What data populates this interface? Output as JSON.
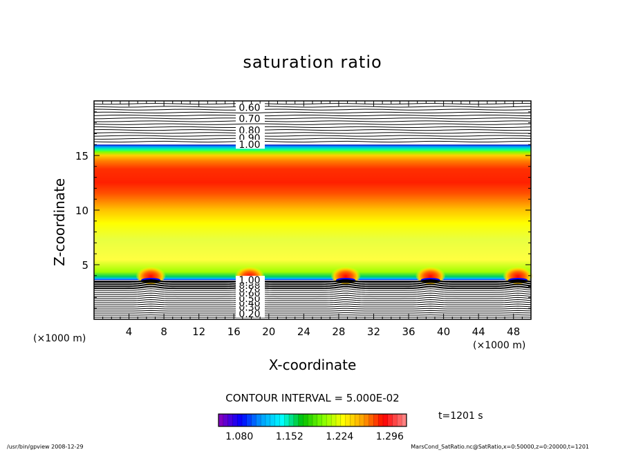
{
  "chart_data": {
    "type": "heatmap",
    "title": "saturation ratio",
    "xlabel": "X-coordinate",
    "ylabel": "Z-coordinate",
    "x_unit": "(×1000 m)",
    "x_unit_right": "(×1000 m)",
    "xlim": [
      0,
      50
    ],
    "ylim": [
      0,
      20
    ],
    "xticks": [
      "4",
      "8",
      "12",
      "16",
      "20",
      "24",
      "28",
      "32",
      "36",
      "40",
      "44",
      "48"
    ],
    "xtick_values": [
      4,
      8,
      12,
      16,
      20,
      24,
      28,
      32,
      36,
      40,
      44,
      48
    ],
    "yticks": [
      "5",
      "10",
      "15"
    ],
    "ytick_values": [
      5,
      10,
      15
    ],
    "contour_labels_upper": [
      {
        "label": "0.60",
        "z": 19.4
      },
      {
        "label": "0.70",
        "z": 18.4
      },
      {
        "label": "0.80",
        "z": 17.3
      },
      {
        "label": "0.90",
        "z": 16.6
      },
      {
        "label": "1.00",
        "z": 16.0
      }
    ],
    "contour_labels_lower": [
      {
        "label": "0.20",
        "z": 0.5
      },
      {
        "label": "0.30",
        "z": 1.1
      },
      {
        "label": "0.40",
        "z": 1.5
      },
      {
        "label": "0.50",
        "z": 1.9
      },
      {
        "label": "0.60",
        "z": 2.4
      },
      {
        "label": "0.70",
        "z": 2.8
      },
      {
        "label": "0.80",
        "z": 3.1
      },
      {
        "label": "0.90",
        "z": 3.4
      },
      {
        "label": "1.00",
        "z": 3.6
      }
    ],
    "saturated_layer_z": [
      3.6,
      16.0
    ],
    "peak_band_z": 13.0,
    "bump_x": [
      6.5,
      17.8,
      28.8,
      38.5,
      48.5
    ],
    "contour_interval": "CONTOUR INTERVAL = 5.000E-02",
    "colorbar": {
      "range": [
        1.05,
        1.32
      ],
      "labels": [
        "1.080",
        "1.152",
        "1.224",
        "1.296"
      ],
      "colors": [
        "#8000c0",
        "#0000ff",
        "#00a0ff",
        "#00ffff",
        "#00c000",
        "#80ff00",
        "#ffff00",
        "#ffa000",
        "#ff0000",
        "#ff8080"
      ]
    },
    "time_label": "t=1201 s"
  },
  "footer": {
    "left": "/usr/bin/gpview   2008-12-29",
    "right": "MarsCond_SatRatio.nc@SatRatio,x=0:50000,z=0:20000,t=1201"
  }
}
